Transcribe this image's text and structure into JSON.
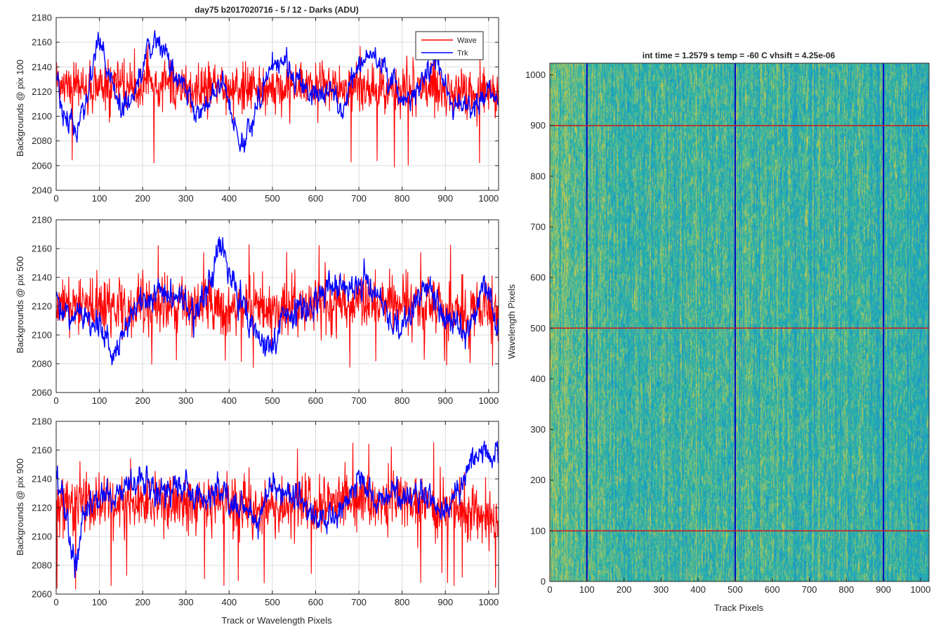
{
  "figure": {
    "colors": {
      "wave": "#ff0000",
      "trk": "#0000ff",
      "axis": "#262626",
      "grid": "#dcdcdc",
      "marker_v": "#0000c8",
      "marker_h": "#d01818",
      "heat_lo": "#1a8fd0",
      "heat_mid": "#26b4a8",
      "heat_hi": "#c8c84e"
    }
  },
  "chart_data": [
    {
      "type": "line",
      "title": "day75 b2017020716 - 5 / 12 - Darks (ADU)",
      "ylabel": "Backgrounds @ pix 100",
      "xlabel": "",
      "xlim": [
        0,
        1023
      ],
      "ylim": [
        2040,
        2180
      ],
      "xticks": [
        0,
        100,
        200,
        300,
        400,
        500,
        600,
        700,
        800,
        900,
        1000
      ],
      "yticks": [
        2040,
        2060,
        2080,
        2100,
        2120,
        2140,
        2160,
        2180
      ],
      "grid": true,
      "legend": {
        "placement": "top-right",
        "entries": [
          "Wave",
          "Trk"
        ]
      },
      "series": [
        {
          "name": "Wave",
          "color": "#ff0000",
          "x": [
            0,
            64,
            128,
            192,
            256,
            320,
            384,
            448,
            512,
            576,
            640,
            704,
            768,
            832,
            896,
            960,
            1023
          ],
          "mean": [
            2125,
            2124,
            2124,
            2123,
            2124,
            2123,
            2124,
            2122,
            2123,
            2124,
            2125,
            2124,
            2123,
            2122,
            2121,
            2119,
            2118
          ],
          "spread": 16,
          "min": 2056,
          "max": 2160
        },
        {
          "name": "Trk",
          "color": "#0000ff",
          "x": [
            0,
            16,
            48,
            80,
            100,
            112,
            150,
            190,
            210,
            240,
            260,
            300,
            330,
            360,
            390,
            410,
            430,
            450,
            480,
            520,
            560,
            600,
            640,
            660,
            680,
            720,
            760,
            800,
            840,
            880,
            920,
            960,
            1000,
            1023
          ],
          "values": [
            2128,
            2100,
            2092,
            2130,
            2165,
            2150,
            2105,
            2120,
            2155,
            2160,
            2140,
            2120,
            2100,
            2118,
            2128,
            2100,
            2075,
            2090,
            2125,
            2145,
            2125,
            2115,
            2125,
            2100,
            2130,
            2150,
            2140,
            2110,
            2125,
            2140,
            2110,
            2105,
            2120,
            2110
          ]
        }
      ]
    },
    {
      "type": "line",
      "title": "",
      "ylabel": "Backgrounds @ pix 500",
      "xlabel": "",
      "xlim": [
        0,
        1023
      ],
      "ylim": [
        2060,
        2180
      ],
      "xticks": [
        0,
        100,
        200,
        300,
        400,
        500,
        600,
        700,
        800,
        900,
        1000
      ],
      "yticks": [
        2060,
        2080,
        2100,
        2120,
        2140,
        2160,
        2180
      ],
      "grid": true,
      "series": [
        {
          "name": "Wave",
          "color": "#ff0000",
          "x": [
            0,
            128,
            256,
            384,
            512,
            640,
            768,
            896,
            1023
          ],
          "mean": [
            2122,
            2121,
            2121,
            2120,
            2120,
            2121,
            2121,
            2118,
            2116
          ],
          "spread": 16,
          "min": 2072,
          "max": 2163
        },
        {
          "name": "Trk",
          "color": "#0000ff",
          "x": [
            0,
            30,
            60,
            90,
            120,
            130,
            160,
            200,
            250,
            280,
            300,
            330,
            360,
            380,
            400,
            430,
            470,
            500,
            520,
            560,
            600,
            640,
            680,
            720,
            760,
            790,
            820,
            860,
            900,
            940,
            970,
            990,
            1023
          ],
          "values": [
            2125,
            2112,
            2115,
            2110,
            2100,
            2080,
            2108,
            2125,
            2130,
            2122,
            2120,
            2118,
            2140,
            2165,
            2140,
            2118,
            2100,
            2092,
            2112,
            2118,
            2122,
            2138,
            2128,
            2138,
            2122,
            2100,
            2115,
            2135,
            2108,
            2102,
            2115,
            2140,
            2100
          ]
        }
      ]
    },
    {
      "type": "line",
      "title": "",
      "ylabel": "Backgrounds @ pix 900",
      "xlabel": "Track or Wavelength Pixels",
      "xlim": [
        0,
        1023
      ],
      "ylim": [
        2060,
        2180
      ],
      "xticks": [
        0,
        100,
        200,
        300,
        400,
        500,
        600,
        700,
        800,
        900,
        1000
      ],
      "yticks": [
        2060,
        2080,
        2100,
        2120,
        2140,
        2160,
        2180
      ],
      "grid": true,
      "series": [
        {
          "name": "Wave",
          "color": "#ff0000",
          "x": [
            0,
            128,
            256,
            384,
            512,
            640,
            768,
            896,
            1023
          ],
          "mean": [
            2124,
            2123,
            2123,
            2122,
            2121,
            2123,
            2122,
            2120,
            2113
          ],
          "spread": 17,
          "min": 2063,
          "max": 2166
        },
        {
          "name": "Trk",
          "color": "#0000ff",
          "x": [
            0,
            20,
            30,
            45,
            60,
            80,
            120,
            160,
            200,
            240,
            300,
            340,
            380,
            420,
            470,
            500,
            540,
            580,
            620,
            660,
            700,
            740,
            780,
            820,
            860,
            900,
            940,
            960,
            990,
            1023
          ],
          "values": [
            2140,
            2122,
            2100,
            2085,
            2110,
            2125,
            2130,
            2135,
            2140,
            2132,
            2130,
            2128,
            2135,
            2120,
            2110,
            2135,
            2130,
            2118,
            2112,
            2118,
            2140,
            2122,
            2130,
            2128,
            2130,
            2115,
            2140,
            2150,
            2160,
            2150
          ]
        }
      ]
    },
    {
      "type": "heatmap",
      "title": "int time = 1.2579 s   temp = -60 C   vhsift = 4.25e-06",
      "xlabel": "Track Pixels",
      "ylabel": "Wavelength Pixels",
      "xlim": [
        0,
        1023
      ],
      "ylim": [
        0,
        1023
      ],
      "xticks": [
        0,
        100,
        200,
        300,
        400,
        500,
        600,
        700,
        800,
        900,
        1000
      ],
      "yticks": [
        0,
        100,
        200,
        300,
        400,
        500,
        600,
        700,
        800,
        900,
        1000
      ],
      "colormap": "parula",
      "markers": {
        "vertical_x": [
          100,
          500,
          900
        ],
        "horizontal_y": [
          100,
          500,
          900
        ]
      }
    }
  ]
}
